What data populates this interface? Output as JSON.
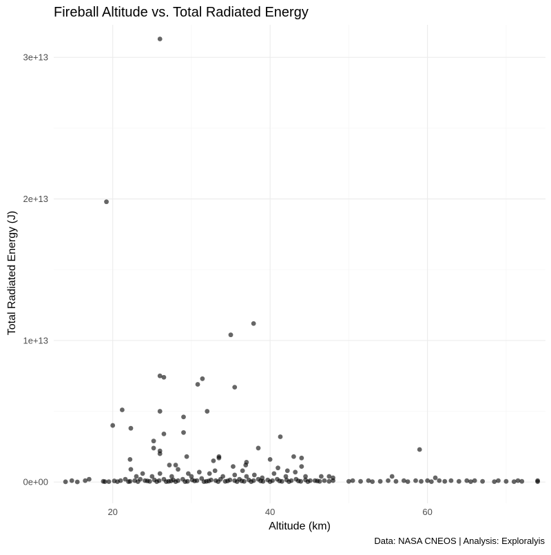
{
  "chart_data": {
    "type": "scatter",
    "title": "Fireball Altitude vs. Total Radiated Energy",
    "xlabel": "Altitude (km)",
    "ylabel": "Total Radiated Energy (J)",
    "caption": "Data: NASA CNEOS | Analysis: Exploralyis",
    "xlim": [
      12.5,
      75
    ],
    "ylim": [
      -1500000000000.0,
      32300000000000.0
    ],
    "x_ticks": [
      20,
      40,
      60
    ],
    "x_tick_labels": [
      "20",
      "40",
      "60"
    ],
    "y_ticks": [
      0,
      10000000000000.0,
      20000000000000.0,
      30000000000000.0
    ],
    "y_tick_labels": [
      "0e+00",
      "1e+13",
      "2e+13",
      "3e+13"
    ],
    "grid": true,
    "point_color": "#000000",
    "point_opacity": 0.6,
    "points": [
      [
        26,
        31300000000000.0
      ],
      [
        19.2,
        19800000000000.0
      ],
      [
        37.9,
        11200000000000.0
      ],
      [
        35.0,
        10400000000000.0
      ],
      [
        26.0,
        7500000000000.0
      ],
      [
        26.5,
        7400000000000.0
      ],
      [
        31.4,
        7300000000000.0
      ],
      [
        30.8,
        6900000000000.0
      ],
      [
        35.5,
        6700000000000.0
      ],
      [
        21.2,
        5100000000000.0
      ],
      [
        32.0,
        5000000000000.0
      ],
      [
        26.0,
        5000000000000.0
      ],
      [
        29.0,
        4600000000000.0
      ],
      [
        20.0,
        4000000000000.0
      ],
      [
        22.3,
        3800000000000.0
      ],
      [
        26.5,
        3400000000000.0
      ],
      [
        29.0,
        3500000000000.0
      ],
      [
        41.3,
        3200000000000.0
      ],
      [
        25.2,
        2900000000000.0
      ],
      [
        38.5,
        2400000000000.0
      ],
      [
        25.2,
        2400000000000.0
      ],
      [
        59.0,
        2300000000000.0
      ],
      [
        26.0,
        2000000000000.0
      ],
      [
        26.0,
        2200000000000.0
      ],
      [
        29.4,
        1800000000000.0
      ],
      [
        33.5,
        1700000000000.0
      ],
      [
        33.5,
        1800000000000.0
      ],
      [
        43.0,
        1800000000000.0
      ],
      [
        44.0,
        1700000000000.0
      ],
      [
        22.2,
        1600000000000.0
      ],
      [
        40.0,
        1600000000000.0
      ],
      [
        32.8,
        1500000000000.0
      ],
      [
        37.0,
        1400000000000.0
      ],
      [
        36.9,
        1200000000000.0
      ],
      [
        35.3,
        1100000000000.0
      ],
      [
        41.0,
        1000000000000.0
      ],
      [
        44.0,
        1100000000000.0
      ],
      [
        27.2,
        1200000000000.0
      ],
      [
        28.0,
        1200000000000.0
      ],
      [
        22.3,
        900000000000.0
      ],
      [
        28.3,
        900000000000.0
      ],
      [
        36.5,
        800000000000.0
      ],
      [
        42.2,
        800000000000.0
      ],
      [
        43.2,
        700000000000.0
      ],
      [
        23.8,
        600000000000.0
      ],
      [
        26.0,
        600000000000.0
      ],
      [
        29.6,
        600000000000.0
      ],
      [
        31.0,
        700000000000.0
      ],
      [
        32.3,
        600000000000.0
      ],
      [
        33.0,
        800000000000.0
      ],
      [
        40.5,
        600000000000.0
      ],
      [
        47.5,
        400000000000.0
      ],
      [
        55.5,
        400000000000.0
      ],
      [
        61.0,
        300000000000.0
      ],
      [
        35.5,
        500000000000.0
      ],
      [
        38.0,
        500000000000.0
      ],
      [
        23.0,
        400000000000.0
      ],
      [
        25.0,
        400000000000.0
      ],
      [
        27.5,
        400000000000.0
      ],
      [
        30.0,
        400000000000.0
      ],
      [
        34.0,
        400000000000.0
      ],
      [
        37.0,
        400000000000.0
      ],
      [
        39.0,
        300000000000.0
      ],
      [
        42.0,
        400000000000.0
      ],
      [
        44.5,
        400000000000.0
      ],
      [
        46.5,
        400000000000.0
      ],
      [
        48.0,
        300000000000.0
      ],
      [
        14.0,
        20000000000.0
      ],
      [
        14.8,
        100000000000.0
      ],
      [
        15.5,
        10000000000.0
      ],
      [
        16.5,
        100000000000.0
      ],
      [
        17.0,
        200000000000.0
      ],
      [
        18.8,
        50000000000.0
      ],
      [
        19.5,
        30000000000.0
      ],
      [
        20.2,
        80000000000.0
      ],
      [
        21.0,
        100000000000.0
      ],
      [
        21.6,
        200000000000.0
      ],
      [
        22.2,
        50000000000.0
      ],
      [
        22.8,
        100000000000.0
      ],
      [
        23.5,
        200000000000.0
      ],
      [
        24.1,
        100000000000.0
      ],
      [
        24.7,
        50000000000.0
      ],
      [
        25.3,
        150000000000.0
      ],
      [
        25.9,
        100000000000.0
      ],
      [
        26.5,
        200000000000.0
      ],
      [
        27.1,
        50000000000.0
      ],
      [
        27.7,
        150000000000.0
      ],
      [
        28.3,
        100000000000.0
      ],
      [
        28.9,
        200000000000.0
      ],
      [
        29.5,
        50000000000.0
      ],
      [
        30.1,
        150000000000.0
      ],
      [
        30.7,
        100000000000.0
      ],
      [
        31.3,
        250000000000.0
      ],
      [
        31.9,
        50000000000.0
      ],
      [
        32.5,
        150000000000.0
      ],
      [
        33.1,
        100000000000.0
      ],
      [
        33.7,
        200000000000.0
      ],
      [
        34.3,
        50000000000.0
      ],
      [
        34.9,
        150000000000.0
      ],
      [
        35.5,
        100000000000.0
      ],
      [
        36.1,
        200000000000.0
      ],
      [
        36.7,
        50000000000.0
      ],
      [
        37.3,
        150000000000.0
      ],
      [
        37.9,
        100000000000.0
      ],
      [
        38.5,
        200000000000.0
      ],
      [
        39.1,
        50000000000.0
      ],
      [
        39.7,
        150000000000.0
      ],
      [
        40.3,
        100000000000.0
      ],
      [
        40.9,
        200000000000.0
      ],
      [
        41.5,
        50000000000.0
      ],
      [
        42.1,
        150000000000.0
      ],
      [
        42.7,
        100000000000.0
      ],
      [
        43.3,
        200000000000.0
      ],
      [
        43.9,
        50000000000.0
      ],
      [
        44.5,
        150000000000.0
      ],
      [
        45.1,
        100000000000.0
      ],
      [
        45.7,
        100000000000.0
      ],
      [
        46.3,
        50000000000.0
      ],
      [
        46.9,
        100000000000.0
      ],
      [
        47.5,
        50000000000.0
      ],
      [
        48.0,
        100000000000.0
      ],
      [
        50.0,
        50000000000.0
      ],
      [
        50.5,
        100000000000.0
      ],
      [
        51.5,
        50000000000.0
      ],
      [
        52.5,
        100000000000.0
      ],
      [
        53.0,
        30000000000.0
      ],
      [
        54.0,
        50000000000.0
      ],
      [
        55.0,
        100000000000.0
      ],
      [
        56.0,
        50000000000.0
      ],
      [
        57.0,
        100000000000.0
      ],
      [
        57.5,
        30000000000.0
      ],
      [
        58.5,
        100000000000.0
      ],
      [
        59.2,
        50000000000.0
      ],
      [
        60.0,
        100000000000.0
      ],
      [
        60.5,
        30000000000.0
      ],
      [
        61.5,
        100000000000.0
      ],
      [
        62.2,
        50000000000.0
      ],
      [
        63.0,
        100000000000.0
      ],
      [
        64.0,
        50000000000.0
      ],
      [
        65.0,
        100000000000.0
      ],
      [
        65.5,
        30000000000.0
      ],
      [
        66.0,
        100000000000.0
      ],
      [
        67.0,
        50000000000.0
      ],
      [
        68.5,
        30000000000.0
      ],
      [
        69.0,
        100000000000.0
      ],
      [
        70.0,
        50000000000.0
      ],
      [
        71.0,
        30000000000.0
      ],
      [
        71.5,
        100000000000.0
      ],
      [
        72.0,
        50000000000.0
      ],
      [
        74.0,
        30000000000.0
      ],
      [
        74.0,
        100000000000.0
      ],
      [
        26.8,
        30000000000.0
      ],
      [
        27.4,
        80000000000.0
      ],
      [
        29.2,
        30000000000.0
      ],
      [
        30.4,
        80000000000.0
      ],
      [
        31.6,
        30000000000.0
      ],
      [
        32.2,
        80000000000.0
      ],
      [
        33.4,
        30000000000.0
      ],
      [
        34.6,
        80000000000.0
      ],
      [
        35.8,
        30000000000.0
      ],
      [
        36.4,
        80000000000.0
      ],
      [
        37.6,
        30000000000.0
      ],
      [
        38.8,
        80000000000.0
      ],
      [
        40.0,
        30000000000.0
      ],
      [
        41.2,
        80000000000.0
      ],
      [
        42.4,
        30000000000.0
      ],
      [
        43.6,
        80000000000.0
      ],
      [
        44.8,
        30000000000.0
      ],
      [
        46.0,
        80000000000.0
      ],
      [
        23.2,
        30000000000.0
      ],
      [
        24.4,
        80000000000.0
      ],
      [
        25.6,
        30000000000.0
      ],
      [
        28.0,
        30000000000.0
      ],
      [
        22.0,
        30000000000.0
      ],
      [
        20.6,
        30000000000.0
      ],
      [
        19.0,
        30000000000.0
      ]
    ]
  }
}
